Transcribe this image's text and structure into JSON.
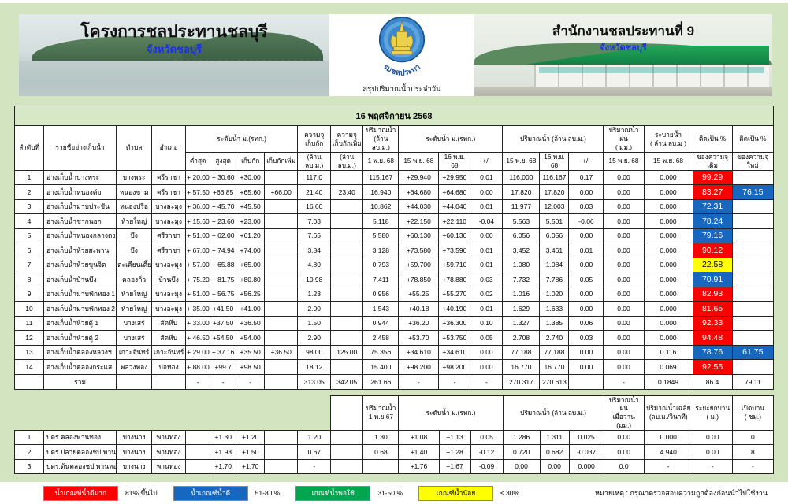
{
  "header": {
    "left": {
      "title": "โครงการชลประทานชลบุรี",
      "subtitle": "จังหวัดชลบุรี"
    },
    "center": {
      "org": "กรมชลประทาน",
      "caption": "สรุปปริมาณน้ำประจำวัน",
      "logo": "rid-seal-icon"
    },
    "right": {
      "title": "สำนักงานชลประทานที่ 9",
      "subtitle": "จังหวัดชลบุรี"
    }
  },
  "colors": {
    "page_bg": "#d3e4c1",
    "banner_green": "#d6e8c6",
    "value_blue": "#2d7fc1",
    "value_red": "#fe0000",
    "pct_red": "#fe0000",
    "pct_blue": "#1667bd",
    "pct_yellow": "#ffff00",
    "legend_green": "#00a550"
  },
  "main_table": {
    "banner": "16 พฤศจิกายน 2568",
    "header_rows": [
      [
        {
          "t": "ลำดับที่",
          "rs": 2
        },
        {
          "t": "รายชื่ออ่างเก็บน้ำ",
          "rs": 2
        },
        {
          "t": "ตำบล",
          "rs": 2
        },
        {
          "t": "อำเภอ",
          "rs": 2
        },
        {
          "t": "ระดับน้ำ ม.(รทก.)",
          "cs": 4
        },
        {
          "t": "ความจุ\nเก็บกัก"
        },
        {
          "t": "ความจุ\nเก็บกักเพิ่ม"
        },
        {
          "t": "ปริมาณน้ำ\n(ล้าน ลบ.ม.)"
        },
        {
          "t": "ระดับน้ำ   ม.(รทก.)",
          "cs": 3
        },
        {
          "t": "ปริมาณน้ำ (ล้าน ลบ.ม.)",
          "cs": 3
        },
        {
          "t": "ปริมาณน้ำฝน\n( มม.)"
        },
        {
          "t": "ระบายน้ำ\n( ล้าน ลบ.ม )"
        },
        {
          "t": "คิดเป็น %"
        },
        {
          "t": "คิดเป็น %"
        }
      ],
      [
        {
          "t": "ต่ำสุด"
        },
        {
          "t": "สูงสุด"
        },
        {
          "t": "เก็บกัก"
        },
        {
          "t": "เก็บกักเพิ่ม"
        },
        {
          "t": "(ล้าน ลบ.ม.)"
        },
        {
          "t": "(ล้าน ลบ.ม.)"
        },
        {
          "t": "1 พ.ย. 68"
        },
        {
          "t": "15 พ.ย. 68"
        },
        {
          "t": "16 พ.ย. 68"
        },
        {
          "t": "+/-"
        },
        {
          "t": "15 พ.ย. 68"
        },
        {
          "t": "16 พ.ย. 68"
        },
        {
          "t": "+/-"
        },
        {
          "t": "15 พ.ย. 68"
        },
        {
          "t": "15 พ.ย. 68"
        },
        {
          "t": "ของความจุเดิม"
        },
        {
          "t": "ของความจุใหม่"
        }
      ]
    ],
    "rows": [
      [
        "1",
        "อ่างเก็บน้ำบางพระ",
        "บางพระ",
        "ศรีราชา",
        "+ 20.00",
        "+ 30.60",
        "+30.00",
        "",
        "117.0",
        "",
        "115.167",
        "+29.940",
        {
          "v": "+29.950",
          "s": "b"
        },
        "0.01",
        "116.000",
        {
          "v": "116.167",
          "s": "b"
        },
        "0.17",
        "0.00",
        "0.000",
        {
          "v": "99.29",
          "s": "R"
        },
        ""
      ],
      [
        "2",
        "อ่างเก็บน้ำหนองค้อ",
        "หนองขาม",
        "ศรีราชา",
        "+ 57.50",
        "+66.85",
        "+65.60",
        "+66.00",
        "21.40",
        "23.40",
        "16.940",
        "+64.680",
        {
          "v": "+64.680",
          "s": "b"
        },
        "0.00",
        "17.820",
        {
          "v": "17.820",
          "s": "b"
        },
        "0.00",
        "0.00",
        {
          "v": "0.000",
          "s": "g"
        },
        {
          "v": "83.27",
          "s": "R"
        },
        {
          "v": "76.15",
          "s": "B"
        }
      ],
      [
        "3",
        "อ่างเก็บน้ำมาบประชัน",
        "หนองปรือ",
        "บางละมุง",
        "+ 36.00",
        "+ 45.70",
        "+45.50",
        "",
        "16.60",
        "",
        "10.862",
        "+44.030",
        {
          "v": "+44.040",
          "s": "b"
        },
        "0.01",
        "11.977",
        {
          "v": "12.003",
          "s": "b"
        },
        "0.03",
        "0.00",
        {
          "v": "0.000",
          "s": "g"
        },
        {
          "v": "72.31",
          "s": "B"
        },
        ""
      ],
      [
        "4",
        "อ่างเก็บน้ำชากนอก",
        "ห้วยใหญ่",
        "บางละมุง",
        "+ 15.60",
        "+ 23.60",
        "+23.00",
        "",
        "7.03",
        "",
        "5.118",
        "+22.150",
        {
          "v": "+22.110",
          "s": "b"
        },
        {
          "v": "-0.04",
          "s": "r"
        },
        "5.563",
        {
          "v": "5.501",
          "s": "b"
        },
        {
          "v": "-0.06",
          "s": "r"
        },
        "0.00",
        {
          "v": "0.000",
          "s": "g"
        },
        {
          "v": "78.24",
          "s": "B"
        },
        ""
      ],
      [
        "5",
        "อ่างเก็บน้ำหนองกลางดง",
        "บึง",
        "ศรีราชา",
        "+ 51.00",
        "+ 62.00",
        "+61.20",
        "",
        "7.65",
        "",
        "5.580",
        "+60.130",
        {
          "v": "+60.130",
          "s": "b"
        },
        "0.00",
        "6.056",
        {
          "v": "6.056",
          "s": "b"
        },
        "0.00",
        "0.00",
        {
          "v": "0.000",
          "s": "g"
        },
        {
          "v": "79.16",
          "s": "B"
        },
        ""
      ],
      [
        "6",
        "อ่างเก็บน้ำห้วยสะพาน",
        "บึง",
        "ศรีราชา",
        "+ 67.00",
        "+ 74.94",
        "+74.00",
        "",
        "3.84",
        "",
        "3.128",
        "+73.580",
        {
          "v": "+73.590",
          "s": "b"
        },
        "0.01",
        "3.452",
        {
          "v": "3.461",
          "s": "b"
        },
        "0.01",
        "0.00",
        {
          "v": "0.000",
          "s": "g"
        },
        {
          "v": "90.12",
          "s": "R"
        },
        ""
      ],
      [
        "7",
        "อ่างเก็บน้ำห้วยขุนจิต",
        "ตะเคียนเตี้ย",
        "บางละมุง",
        "+ 57.00",
        "+ 65.88",
        "+65.00",
        "",
        "4.80",
        "",
        "0.793",
        "+59.700",
        {
          "v": "+59.710",
          "s": "b"
        },
        "0.01",
        "1.080",
        {
          "v": "1.084",
          "s": "b"
        },
        "0.00",
        "0.00",
        {
          "v": "0.000",
          "s": "g"
        },
        {
          "v": "22.58",
          "s": "Y"
        },
        ""
      ],
      [
        "8",
        "อ่างเก็บน้ำบ้านบึง",
        "คลองกิ่ว",
        "บ้านบึง",
        "+ 75.20",
        "+ 81.75",
        "+80.80",
        "",
        "10.98",
        "",
        "7.411",
        "+78.850",
        {
          "v": "+78.880",
          "s": "b"
        },
        "0.03",
        "7.732",
        {
          "v": "7.786",
          "s": "b"
        },
        "0.05",
        "0.00",
        {
          "v": "0.000",
          "s": "g"
        },
        {
          "v": "70.91",
          "s": "B"
        },
        ""
      ],
      [
        "9",
        "อ่างเก็บน้ำมาบฟักทอง 1",
        "ห้วยใหญ่",
        "บางละมุง",
        "+ 51.00",
        "+ 56.75",
        "+56.25",
        "",
        "1.23",
        "",
        "0.956",
        "+55.25",
        {
          "v": "+55.270",
          "s": "b"
        },
        "0.02",
        "1.016",
        {
          "v": "1.020",
          "s": "b"
        },
        "0.00",
        "0.00",
        {
          "v": "0.000",
          "s": "g"
        },
        {
          "v": "82.93",
          "s": "R"
        },
        ""
      ],
      [
        "10",
        "อ่างเก็บน้ำมาบฟักทอง 2",
        "ห้วยใหญ่",
        "บางละมุง",
        "+ 35.00",
        "+41.50",
        "+41.00",
        "",
        "2.00",
        "",
        "1.543",
        "+40.18",
        {
          "v": "+40.190",
          "s": "b"
        },
        "0.01",
        "1.629",
        {
          "v": "1.633",
          "s": "b"
        },
        "0.00",
        "0.00",
        {
          "v": "0.000",
          "s": "g"
        },
        {
          "v": "81.65",
          "s": "R"
        },
        ""
      ],
      [
        "11",
        "อ่างเก็บน้ำห้วยตู้ 1",
        "บางเสร่",
        "สัตหีบ",
        "+ 33.00",
        "+37.50",
        "+36.50",
        "",
        "1.50",
        "",
        "0.944",
        "+36.20",
        {
          "v": "+36.300",
          "s": "b"
        },
        "0.10",
        "1.327",
        {
          "v": "1.385",
          "s": "b"
        },
        "0.06",
        "0.00",
        {
          "v": "0.000",
          "s": "g"
        },
        {
          "v": "92.33",
          "s": "R"
        },
        ""
      ],
      [
        "12",
        "อ่างเก็บน้ำห้วยตู้ 2",
        "บางเสร่",
        "สัตหีบ",
        "+ 46.50",
        "+54.50",
        "+54.00",
        "",
        "2.90",
        "",
        "2.458",
        "+53.70",
        {
          "v": "+53.750",
          "s": "b"
        },
        "0.05",
        "2.708",
        {
          "v": "2.740",
          "s": "b"
        },
        "0.03",
        "0.00",
        {
          "v": "0.000",
          "s": "g"
        },
        {
          "v": "94.48",
          "s": "R"
        },
        ""
      ],
      [
        "13",
        "อ่างเก็บน้ำคลองหลวงฯ",
        "เกาะจันทร์",
        "เกาะจันทร์",
        "+ 29.00",
        "+ 37.16",
        "+35.50",
        "+36.50",
        "98.00",
        "125.00",
        "75.356",
        "+34.610",
        {
          "v": "+34.610",
          "s": "b"
        },
        "0.00",
        "77.188",
        {
          "v": "77.188",
          "s": "b"
        },
        "0.00",
        "0.00",
        "0.116",
        {
          "v": "78.76",
          "s": "B"
        },
        {
          "v": "61.75",
          "s": "B"
        }
      ],
      [
        "14",
        "อ่างเก็บน้ำคลองกระแส",
        "พลวงทอง",
        "บ่อทอง",
        "+ 88.00",
        "+99.7",
        "+98.50",
        "",
        "18.12",
        "",
        "15.400",
        "+98.200",
        {
          "v": "+98.200",
          "s": "b"
        },
        "0.00",
        "16.770",
        {
          "v": "16.770",
          "s": "b"
        },
        "0.00",
        "0.00",
        "0.069",
        {
          "v": "92.55",
          "s": "R"
        },
        ""
      ]
    ],
    "total_row": [
      "",
      "รวม",
      "",
      "",
      "-",
      "-",
      "-",
      "",
      "313.05",
      "342.05",
      "261.66",
      "-",
      "-",
      "-",
      "270.317",
      {
        "v": "270.613",
        "s": "b"
      },
      "",
      "-",
      "0.1849",
      "86.4",
      "79.11"
    ]
  },
  "gate_table": {
    "header_rows": [
      [
        {
          "t": "",
          "cs": 9,
          "cls": "gh"
        },
        {
          "t": ""
        },
        {
          "t": "ปริมาณน้ำ\n1 พ.ย.67"
        },
        {
          "t": "ระดับน้ำ   ม.(รทก.)",
          "cs": 3
        },
        {
          "t": "ปริมาณน้ำ (ล้าน ลบ.ม.)",
          "cs": 3
        },
        {
          "t": "ปริมาณน้ำฝน\nเมื่อวาน (มม.)"
        },
        {
          "t": "ปริมาณน้ำเฉลี่ย\n(ลบ.ม./วินาที)"
        },
        {
          "t": "ระยะยกบาน\n( ม.)"
        },
        {
          "t": "เปิดบาน\n( ชม.)"
        }
      ]
    ],
    "rows": [
      [
        "1",
        "ปตร.คลองพานทอง",
        "บางนาง",
        "พานทอง",
        "",
        "+1.30",
        "+1.20",
        "",
        "1.20",
        "",
        "1.30",
        "+1.08",
        {
          "v": "+1.13",
          "s": "b"
        },
        "0.05",
        "1.286",
        {
          "v": "1.311",
          "s": "b"
        },
        "0.025",
        {
          "v": "0.00",
          "s": "b"
        },
        "0.000",
        "0.00",
        "0"
      ],
      [
        "2",
        "ปตร.ปลายคลองชป.พานทอง",
        "บางนาง",
        "พานทอง",
        "",
        "+1.93",
        "+1.50",
        "",
        "0.67",
        "",
        "0.68",
        "+1.40",
        {
          "v": "+1.28",
          "s": "b"
        },
        {
          "v": "-0.12",
          "s": "r"
        },
        "0.720",
        {
          "v": "0.682",
          "s": "b"
        },
        {
          "v": "-0.037",
          "s": "r"
        },
        {
          "v": "0.00",
          "s": "b"
        },
        "4.940",
        "0.00",
        "8"
      ],
      [
        "3",
        "ปตร.ต้นคลองชป.พานทอง",
        "บางนาง",
        "พานทอง",
        "",
        "+1.70",
        "+1.70",
        "",
        "-",
        "",
        "",
        "+1.76",
        {
          "v": "+1.67",
          "s": "b"
        },
        {
          "v": "-0.09",
          "s": "r"
        },
        {
          "v": "0.00",
          "s": "g"
        },
        {
          "v": "0.00",
          "s": "b"
        },
        "0.000",
        {
          "v": "0.0",
          "s": "b"
        },
        "-",
        "-",
        "-"
      ]
    ]
  },
  "legend": {
    "items": [
      {
        "label": "น้ำเกณฑ์น้ำดีมาก",
        "range": "81% ขึ้นไป",
        "style": "background:#fe0000;color:#ffffff"
      },
      {
        "label": "น้ำเกณฑ์น้ำดี",
        "range": "51-80 %",
        "style": "background:#1667bd;color:#ffffff"
      },
      {
        "label": "เกณฑ์น้ำพอใช้",
        "range": "31-50 %",
        "style": "background:#00a550;color:#ffffff"
      },
      {
        "label": "เกณฑ์น้ำน้อย",
        "range": "≤ 30%",
        "style": "background:#ffff00;color:#000000"
      }
    ]
  },
  "footer": {
    "note": "หมายเหตุ : กรุณาตรวจสอบความถูกต้องก่อนนำไปใช้งาน"
  }
}
